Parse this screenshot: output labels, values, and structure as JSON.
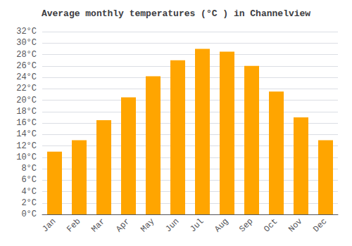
{
  "chart_data": {
    "type": "bar",
    "title": "Average monthly temperatures (°C ) in Channelview",
    "categories": [
      "Jan",
      "Feb",
      "Mar",
      "Apr",
      "May",
      "Jun",
      "Jul",
      "Aug",
      "Sep",
      "Oct",
      "Nov",
      "Dec"
    ],
    "values": [
      11,
      13,
      16.5,
      20.5,
      24.2,
      27,
      29,
      28.5,
      26,
      21.5,
      17,
      13
    ],
    "color": "#FFA500",
    "ylim": [
      0,
      32
    ],
    "yticks": [
      {
        "value": 0,
        "label": "0°C"
      },
      {
        "value": 2,
        "label": "2°C"
      },
      {
        "value": 4,
        "label": "4°C"
      },
      {
        "value": 6,
        "label": "6°C"
      },
      {
        "value": 8,
        "label": "8°C"
      },
      {
        "value": 10,
        "label": "10°C"
      },
      {
        "value": 12,
        "label": "12°C"
      },
      {
        "value": 14,
        "label": "14°C"
      },
      {
        "value": 16,
        "label": "16°C"
      },
      {
        "value": 18,
        "label": "18°C"
      },
      {
        "value": 20,
        "label": "20°C"
      },
      {
        "value": 22,
        "label": "22°C"
      },
      {
        "value": 24,
        "label": "24°C"
      },
      {
        "value": 26,
        "label": "26°C"
      },
      {
        "value": 28,
        "label": "28°C"
      },
      {
        "value": 30,
        "label": "30°C"
      },
      {
        "value": 32,
        "label": "32°C"
      }
    ],
    "grid": true
  }
}
